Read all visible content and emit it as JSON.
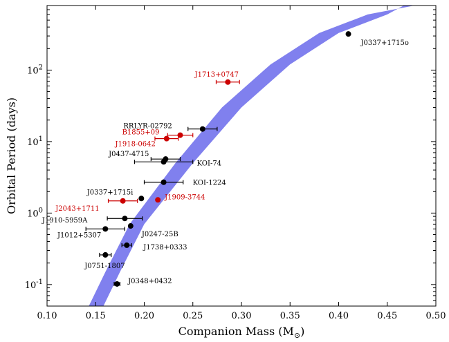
{
  "chart_data": {
    "type": "scatter",
    "title": "",
    "xlabel": "Companion Mass (M",
    "xlabel_sub": "⊙",
    "xlabel_close": ")",
    "ylabel": "Orbital Period (days)",
    "xlim": [
      0.1,
      0.5
    ],
    "ylim": [
      0.05,
      800
    ],
    "yscale": "log",
    "xticks": [
      "0.10",
      "0.15",
      "0.20",
      "0.25",
      "0.30",
      "0.35",
      "0.40",
      "0.45",
      "0.50"
    ],
    "xtick_values": [
      0.1,
      0.15,
      0.2,
      0.25,
      0.3,
      0.35,
      0.4,
      0.45,
      0.5
    ],
    "yticks": [
      {
        "value": 0.1,
        "base": "10",
        "exp": "-1"
      },
      {
        "value": 1,
        "base": "10",
        "exp": "0"
      },
      {
        "value": 10,
        "base": "10",
        "exp": "1"
      },
      {
        "value": 100,
        "base": "10",
        "exp": "2"
      }
    ],
    "band": {
      "color": "#8080ee",
      "upper": [
        [
          0.158,
          0.05
        ],
        [
          0.175,
          0.15
        ],
        [
          0.2,
          0.7
        ],
        [
          0.25,
          5
        ],
        [
          0.3,
          30
        ],
        [
          0.35,
          120
        ],
        [
          0.4,
          330
        ],
        [
          0.45,
          600
        ],
        [
          0.467,
          800
        ]
      ],
      "lower": [
        [
          0.143,
          0.05
        ],
        [
          0.16,
          0.15
        ],
        [
          0.185,
          0.7
        ],
        [
          0.232,
          5
        ],
        [
          0.28,
          30
        ],
        [
          0.33,
          120
        ],
        [
          0.38,
          330
        ],
        [
          0.43,
          600
        ],
        [
          0.478,
          800
        ]
      ]
    },
    "colors": {
      "black": "#000000",
      "red": "#cc0000"
    },
    "points": [
      {
        "label": "J0337+1715o",
        "x": 0.41,
        "y": 320,
        "xerr": 0,
        "color": "black"
      },
      {
        "label": "J1713+0747",
        "x": 0.286,
        "y": 68,
        "xerr": 0.012,
        "color": "red"
      },
      {
        "label": "RRLYR-02792",
        "x": 0.26,
        "y": 15,
        "xerr": 0.015,
        "color": "black"
      },
      {
        "label": "B1855+09",
        "x": 0.237,
        "y": 12.3,
        "xerr": 0.013,
        "color": "red"
      },
      {
        "label": "J1918-0642",
        "x": 0.223,
        "y": 11,
        "xerr": 0.012,
        "color": "red"
      },
      {
        "label": "J0437-4715",
        "x": 0.222,
        "y": 5.7,
        "xerr": 0.015,
        "color": "black"
      },
      {
        "label": "KOI-74",
        "x": 0.22,
        "y": 5.2,
        "xerr": 0.03,
        "color": "black"
      },
      {
        "label": "KOI-1224",
        "x": 0.22,
        "y": 2.7,
        "xerr": 0.02,
        "color": "black"
      },
      {
        "label": "J0337+1715i",
        "x": 0.197,
        "y": 1.6,
        "xerr": 0,
        "color": "black"
      },
      {
        "label": "J2043+1711",
        "x": 0.178,
        "y": 1.48,
        "xerr": 0.015,
        "color": "red"
      },
      {
        "label": "J1909-3744",
        "x": 0.214,
        "y": 1.53,
        "xerr": 0,
        "color": "red"
      },
      {
        "label": "J1910-5959A",
        "x": 0.18,
        "y": 0.84,
        "xerr": 0.018,
        "color": "black"
      },
      {
        "label": "J0247-25B",
        "x": 0.186,
        "y": 0.66,
        "xerr": 0,
        "color": "black"
      },
      {
        "label": "J1012+5307",
        "x": 0.16,
        "y": 0.6,
        "xerr": 0.02,
        "color": "black"
      },
      {
        "label": "J1738+0333",
        "x": 0.182,
        "y": 0.355,
        "xerr": 0.005,
        "color": "black"
      },
      {
        "label": "J0751-1807",
        "x": 0.16,
        "y": 0.26,
        "xerr": 0.006,
        "color": "black"
      },
      {
        "label": "J0348+0432",
        "x": 0.172,
        "y": 0.102,
        "xerr": 0.003,
        "color": "black"
      }
    ]
  }
}
